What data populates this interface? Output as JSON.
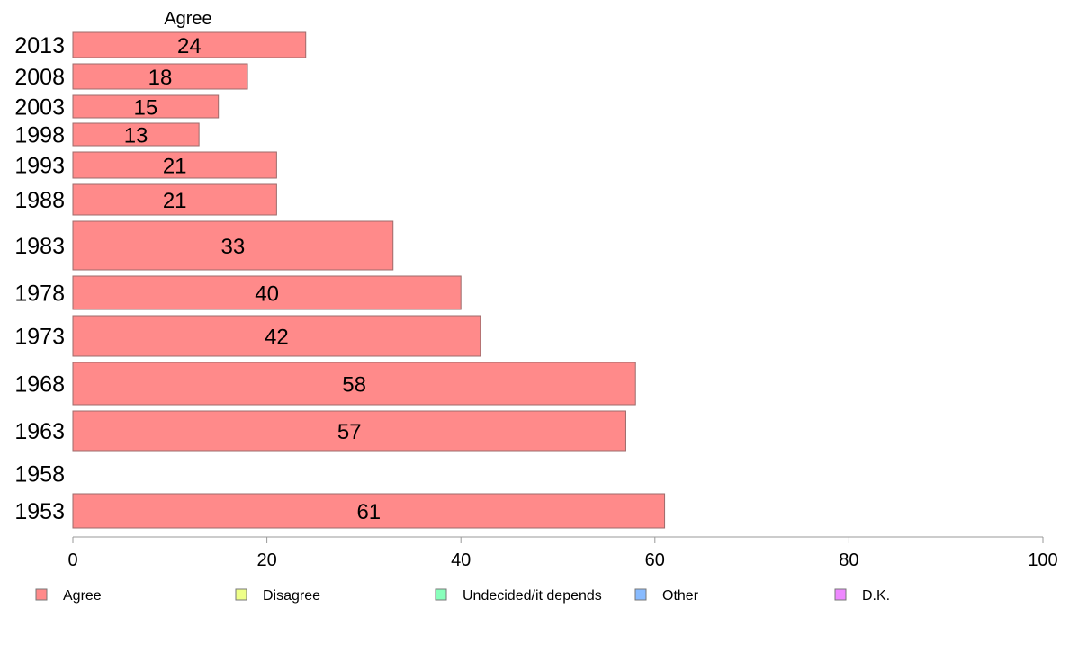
{
  "chart_data": {
    "type": "bar",
    "orientation": "horizontal",
    "title": "Agree",
    "categories": [
      "2013",
      "2008",
      "2003",
      "1998",
      "1993",
      "1988",
      "1983",
      "1978",
      "1973",
      "1968",
      "1963",
      "1958",
      "1953"
    ],
    "series": [
      {
        "name": "Agree",
        "values": [
          24,
          18,
          15,
          13,
          21,
          21,
          33,
          40,
          42,
          58,
          57,
          null,
          61
        ]
      }
    ],
    "xlim": [
      0,
      100
    ],
    "xticks": [
      "0",
      "20",
      "40",
      "60",
      "80",
      "100"
    ],
    "grid": false,
    "legend": {
      "position": "bottom",
      "entries": [
        {
          "label": "Agree",
          "color": "#ff8a8a"
        },
        {
          "label": "Disagree",
          "color": "#eeff88"
        },
        {
          "label": "Undecided/it depends",
          "color": "#88ffbb"
        },
        {
          "label": "Other",
          "color": "#88bbff"
        },
        {
          "label": "D.K.",
          "color": "#ee88ff"
        }
      ]
    },
    "colors": {
      "bar": "#ff8a8a",
      "bar_stroke": "#9c6b6b",
      "axis": "#999999"
    }
  }
}
